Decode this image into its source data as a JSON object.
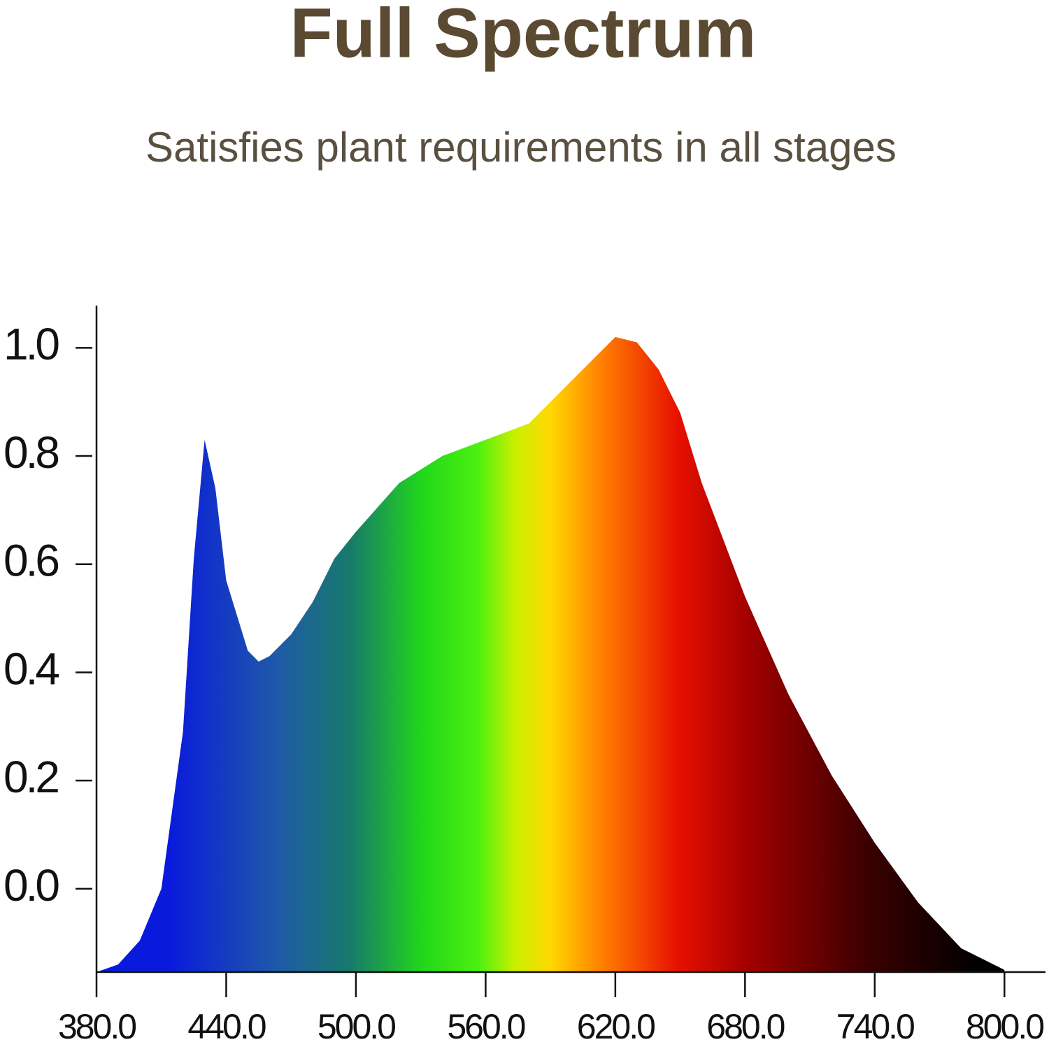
{
  "chart_data": {
    "type": "area",
    "title": "Full Spectrum",
    "subtitle": "Satisfies plant requirements in all stages",
    "x": [
      380,
      390,
      400,
      410,
      420,
      425,
      430,
      435,
      440,
      450,
      455,
      460,
      470,
      480,
      490,
      500,
      520,
      540,
      560,
      580,
      600,
      620,
      630,
      640,
      650,
      660,
      680,
      700,
      720,
      740,
      760,
      780,
      800
    ],
    "values": [
      -0.154,
      -0.14,
      -0.096,
      0.0,
      0.29,
      0.61,
      0.83,
      0.74,
      0.57,
      0.44,
      0.42,
      0.43,
      0.47,
      0.53,
      0.61,
      0.66,
      0.75,
      0.8,
      0.83,
      0.86,
      0.94,
      1.02,
      1.01,
      0.96,
      0.88,
      0.75,
      0.54,
      0.36,
      0.21,
      0.085,
      -0.025,
      -0.11,
      -0.15
    ],
    "xlim": [
      380,
      819
    ],
    "ylim": [
      -0.154,
      1.078
    ],
    "xticks": [
      {
        "value": 380,
        "label": "380.0"
      },
      {
        "value": 440,
        "label": "440.0"
      },
      {
        "value": 500,
        "label": "500.0"
      },
      {
        "value": 560,
        "label": "560.0"
      },
      {
        "value": 620,
        "label": "620.0"
      },
      {
        "value": 680,
        "label": "680.0"
      },
      {
        "value": 740,
        "label": "740.0"
      },
      {
        "value": 800,
        "label": "800.0"
      }
    ],
    "yticks": [
      {
        "value": 0,
        "label": "0.0"
      },
      0.2,
      0.4,
      0.6,
      0.8,
      {
        "value": 1,
        "label": "1.0"
      }
    ]
  }
}
